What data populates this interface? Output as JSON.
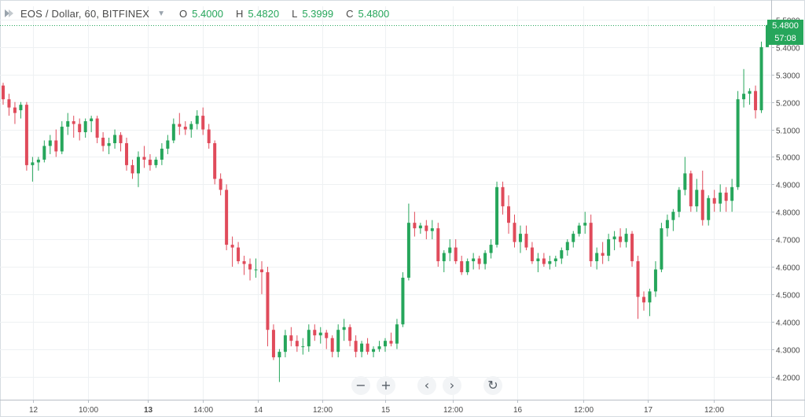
{
  "legend": {
    "symbol_title": "EOS / Dollar, 60, BITFINEX",
    "open_label": "O",
    "open_value": "5.4000",
    "high_label": "H",
    "high_value": "5.4820",
    "low_label": "L",
    "low_value": "5.3999",
    "close_label": "C",
    "close_value": "5.4800"
  },
  "price_axis": {
    "last_price": "5.4800",
    "countdown": "57:08",
    "up_color": "#26a65b",
    "down_color": "#e04b5b"
  },
  "nav": {
    "zoom_out": "−",
    "zoom_in": "+",
    "scroll_left": "‹",
    "scroll_right": "›",
    "reset": "↻"
  },
  "chart_data": {
    "type": "candlestick",
    "ylim": [
      4.15,
      5.52
    ],
    "yticks": [
      "5.5000",
      "5.4000",
      "5.3000",
      "5.2000",
      "5.1000",
      "5.0000",
      "4.9000",
      "4.8000",
      "4.7000",
      "4.6000",
      "4.5000",
      "4.4000",
      "4.3000",
      "4.2000"
    ],
    "xticks": [
      "12",
      "10:00",
      "13",
      "14:00",
      "14",
      "12:00",
      "15",
      "12:00",
      "16",
      "12:00",
      "17",
      "12:00"
    ],
    "bold_xticks": [
      "13"
    ],
    "candles": [
      [
        5.26,
        5.27,
        5.19,
        5.21
      ],
      [
        5.21,
        5.23,
        5.15,
        5.18
      ],
      [
        5.18,
        5.2,
        5.12,
        5.16
      ],
      [
        5.17,
        5.2,
        5.14,
        5.19
      ],
      [
        5.19,
        5.2,
        4.95,
        4.97
      ],
      [
        4.97,
        5.0,
        4.91,
        4.98
      ],
      [
        4.98,
        5.0,
        4.95,
        4.99
      ],
      [
        4.99,
        5.06,
        4.98,
        5.04
      ],
      [
        5.04,
        5.08,
        5.01,
        5.06
      ],
      [
        5.06,
        5.1,
        5.0,
        5.02
      ],
      [
        5.02,
        5.13,
        5.01,
        5.11
      ],
      [
        5.11,
        5.16,
        5.08,
        5.13
      ],
      [
        5.13,
        5.15,
        5.07,
        5.12
      ],
      [
        5.12,
        5.14,
        5.06,
        5.09
      ],
      [
        5.09,
        5.14,
        5.07,
        5.13
      ],
      [
        5.13,
        5.15,
        5.09,
        5.14
      ],
      [
        5.14,
        5.15,
        5.05,
        5.07
      ],
      [
        5.07,
        5.09,
        5.02,
        5.04
      ],
      [
        5.04,
        5.07,
        5.01,
        5.05
      ],
      [
        5.05,
        5.1,
        5.03,
        5.08
      ],
      [
        5.08,
        5.09,
        5.02,
        5.05
      ],
      [
        5.05,
        5.07,
        4.95,
        4.97
      ],
      [
        4.97,
        4.99,
        4.92,
        4.94
      ],
      [
        4.94,
        5.02,
        4.89,
        5.0
      ],
      [
        5.0,
        5.04,
        4.96,
        4.99
      ],
      [
        4.99,
        5.01,
        4.95,
        4.97
      ],
      [
        4.97,
        5.0,
        4.96,
        4.99
      ],
      [
        4.99,
        5.05,
        4.97,
        5.03
      ],
      [
        5.03,
        5.08,
        5.01,
        5.06
      ],
      [
        5.06,
        5.14,
        5.05,
        5.12
      ],
      [
        5.12,
        5.16,
        5.08,
        5.11
      ],
      [
        5.11,
        5.13,
        5.08,
        5.1
      ],
      [
        5.1,
        5.13,
        5.07,
        5.12
      ],
      [
        5.12,
        5.17,
        5.1,
        5.15
      ],
      [
        5.15,
        5.18,
        5.08,
        5.1
      ],
      [
        5.1,
        5.12,
        5.03,
        5.05
      ],
      [
        5.05,
        5.06,
        4.9,
        4.92
      ],
      [
        4.92,
        4.94,
        4.86,
        4.88
      ],
      [
        4.88,
        4.9,
        4.66,
        4.68
      ],
      [
        4.68,
        4.71,
        4.6,
        4.67
      ],
      [
        4.67,
        4.69,
        4.61,
        4.62
      ],
      [
        4.62,
        4.64,
        4.57,
        4.61
      ],
      [
        4.61,
        4.63,
        4.55,
        4.59
      ],
      [
        4.59,
        4.63,
        4.56,
        4.59
      ],
      [
        4.59,
        4.62,
        4.5,
        4.58
      ],
      [
        4.58,
        4.6,
        4.31,
        4.37
      ],
      [
        4.37,
        4.39,
        4.26,
        4.27
      ],
      [
        4.27,
        4.3,
        4.18,
        4.29
      ],
      [
        4.29,
        4.37,
        4.27,
        4.35
      ],
      [
        4.35,
        4.38,
        4.31,
        4.33
      ],
      [
        4.33,
        4.35,
        4.29,
        4.31
      ],
      [
        4.31,
        4.34,
        4.28,
        4.31
      ],
      [
        4.31,
        4.39,
        4.29,
        4.37
      ],
      [
        4.37,
        4.39,
        4.33,
        4.35
      ],
      [
        4.35,
        4.38,
        4.32,
        4.36
      ],
      [
        4.36,
        4.37,
        4.3,
        4.34
      ],
      [
        4.34,
        4.35,
        4.27,
        4.29
      ],
      [
        4.29,
        4.39,
        4.27,
        4.37
      ],
      [
        4.37,
        4.41,
        4.33,
        4.38
      ],
      [
        4.38,
        4.39,
        4.31,
        4.33
      ],
      [
        4.33,
        4.35,
        4.27,
        4.29
      ],
      [
        4.29,
        4.33,
        4.27,
        4.32
      ],
      [
        4.32,
        4.34,
        4.28,
        4.29
      ],
      [
        4.29,
        4.31,
        4.27,
        4.3
      ],
      [
        4.3,
        4.33,
        4.29,
        4.31
      ],
      [
        4.31,
        4.34,
        4.29,
        4.33
      ],
      [
        4.33,
        4.36,
        4.31,
        4.32
      ],
      [
        4.32,
        4.41,
        4.3,
        4.39
      ],
      [
        4.39,
        4.58,
        4.38,
        4.56
      ],
      [
        4.56,
        4.83,
        4.55,
        4.76
      ],
      [
        4.76,
        4.8,
        4.71,
        4.74
      ],
      [
        4.74,
        4.76,
        4.72,
        4.75
      ],
      [
        4.75,
        4.77,
        4.7,
        4.73
      ],
      [
        4.73,
        4.77,
        4.7,
        4.74
      ],
      [
        4.74,
        4.76,
        4.6,
        4.62
      ],
      [
        4.62,
        4.66,
        4.58,
        4.65
      ],
      [
        4.65,
        4.7,
        4.62,
        4.67
      ],
      [
        4.67,
        4.7,
        4.61,
        4.62
      ],
      [
        4.62,
        4.64,
        4.57,
        4.58
      ],
      [
        4.58,
        4.63,
        4.57,
        4.62
      ],
      [
        4.62,
        4.65,
        4.59,
        4.63
      ],
      [
        4.63,
        4.64,
        4.59,
        4.61
      ],
      [
        4.61,
        4.66,
        4.59,
        4.65
      ],
      [
        4.65,
        4.7,
        4.63,
        4.68
      ],
      [
        4.68,
        4.91,
        4.67,
        4.89
      ],
      [
        4.89,
        4.91,
        4.79,
        4.82
      ],
      [
        4.82,
        4.86,
        4.72,
        4.76
      ],
      [
        4.76,
        4.79,
        4.67,
        4.69
      ],
      [
        4.69,
        4.75,
        4.65,
        4.72
      ],
      [
        4.72,
        4.75,
        4.66,
        4.67
      ],
      [
        4.67,
        4.69,
        4.61,
        4.62
      ],
      [
        4.62,
        4.65,
        4.58,
        4.63
      ],
      [
        4.63,
        4.65,
        4.6,
        4.61
      ],
      [
        4.61,
        4.64,
        4.59,
        4.62
      ],
      [
        4.62,
        4.64,
        4.6,
        4.63
      ],
      [
        4.63,
        4.67,
        4.61,
        4.66
      ],
      [
        4.66,
        4.7,
        4.64,
        4.69
      ],
      [
        4.69,
        4.73,
        4.67,
        4.72
      ],
      [
        4.72,
        4.76,
        4.71,
        4.75
      ],
      [
        4.75,
        4.8,
        4.72,
        4.76
      ],
      [
        4.76,
        4.79,
        4.6,
        4.62
      ],
      [
        4.62,
        4.67,
        4.59,
        4.65
      ],
      [
        4.65,
        4.69,
        4.61,
        4.64
      ],
      [
        4.64,
        4.72,
        4.62,
        4.7
      ],
      [
        4.7,
        4.73,
        4.66,
        4.71
      ],
      [
        4.71,
        4.74,
        4.67,
        4.69
      ],
      [
        4.69,
        4.74,
        4.67,
        4.72
      ],
      [
        4.72,
        4.73,
        4.6,
        4.62
      ],
      [
        4.62,
        4.64,
        4.41,
        4.49
      ],
      [
        4.49,
        4.51,
        4.44,
        4.47
      ],
      [
        4.47,
        4.52,
        4.42,
        4.51
      ],
      [
        4.51,
        4.62,
        4.49,
        4.59
      ],
      [
        4.59,
        4.76,
        4.58,
        4.74
      ],
      [
        4.74,
        4.79,
        4.71,
        4.77
      ],
      [
        4.77,
        4.81,
        4.73,
        4.8
      ],
      [
        4.8,
        4.89,
        4.78,
        4.88
      ],
      [
        4.88,
        5.0,
        4.86,
        4.94
      ],
      [
        4.94,
        4.95,
        4.8,
        4.82
      ],
      [
        4.82,
        4.92,
        4.8,
        4.88
      ],
      [
        4.88,
        4.95,
        4.75,
        4.77
      ],
      [
        4.77,
        4.86,
        4.75,
        4.85
      ],
      [
        4.85,
        4.88,
        4.8,
        4.83
      ],
      [
        4.83,
        4.9,
        4.8,
        4.87
      ],
      [
        4.87,
        4.89,
        4.8,
        4.84
      ],
      [
        4.84,
        4.92,
        4.8,
        4.89
      ],
      [
        4.89,
        5.24,
        4.88,
        5.21
      ],
      [
        5.21,
        5.32,
        5.18,
        5.23
      ],
      [
        5.23,
        5.25,
        5.19,
        5.24
      ],
      [
        5.24,
        5.26,
        5.14,
        5.17
      ],
      [
        5.17,
        5.42,
        5.16,
        5.4
      ],
      [
        5.4,
        5.482,
        5.3999,
        5.48
      ]
    ]
  }
}
